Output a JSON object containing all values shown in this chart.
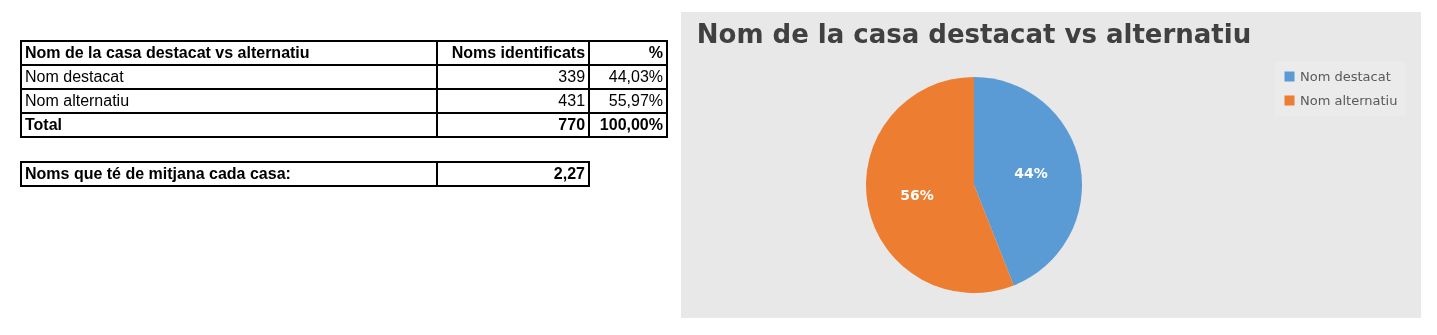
{
  "chart_data": [
    {
      "type": "other",
      "annotations": [
        "Nom de la casa destacat vs alternatiu",
        "Noms identificats",
        "%",
        "Nom destacat",
        "339",
        "44,03%",
        "Nom alternatiu",
        "431",
        "55,97%",
        "Total",
        "770",
        "100,00%",
        "Noms que té de mitjana cada casa:",
        "2,27"
      ]
    },
    {
      "type": "pie",
      "title": "Nom de la casa destacat vs alternatiu",
      "categories": [
        "Nom destacat",
        "Nom alternatiu"
      ],
      "values": [
        44,
        56
      ],
      "colors": [
        "#5b9bd5",
        "#ed7d31"
      ],
      "value_labels": [
        "44%",
        "56%"
      ],
      "legend": "right"
    }
  ]
}
